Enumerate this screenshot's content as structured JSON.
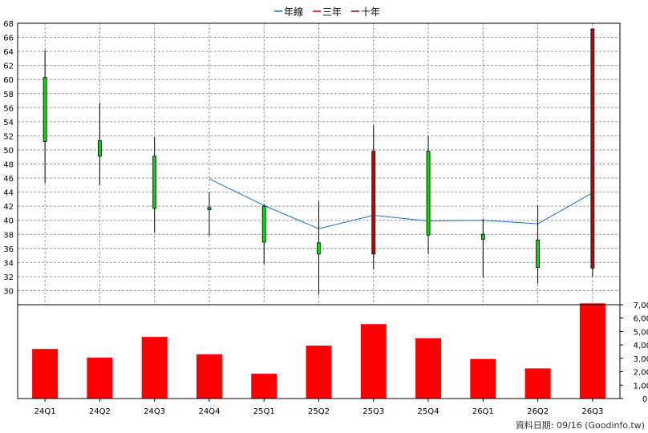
{
  "chart_data": {
    "type": "candlestick",
    "categories": [
      "24Q1",
      "24Q2",
      "24Q3",
      "24Q4",
      "25Q1",
      "25Q2",
      "25Q3",
      "25Q4",
      "26Q1",
      "26Q2",
      "26Q3"
    ],
    "legend": [
      {
        "name": "年線",
        "color": "#1f6fd1"
      },
      {
        "name": "三年",
        "color": "#e00000"
      },
      {
        "name": "十年",
        "color": "#800040"
      }
    ],
    "price_axis": {
      "ylim": [
        28,
        68
      ],
      "ticks": [
        30,
        32,
        34,
        36,
        38,
        40,
        42,
        44,
        46,
        48,
        50,
        52,
        54,
        56,
        58,
        60,
        62,
        64,
        66,
        68
      ]
    },
    "candles": [
      {
        "open": 60.3,
        "close": 51.2,
        "high": 64.2,
        "low": 45.3,
        "color": "#00dd00"
      },
      {
        "open": 51.3,
        "close": 49.1,
        "high": 56.7,
        "low": 45.0,
        "color": "#00dd00"
      },
      {
        "open": 49.1,
        "close": 41.7,
        "high": 51.8,
        "low": 38.3,
        "color": "#00dd00"
      },
      {
        "open": 41.8,
        "close": 41.5,
        "high": 44.0,
        "low": 37.8,
        "color": "#00dd00"
      },
      {
        "open": 42.0,
        "close": 36.9,
        "high": 42.3,
        "low": 33.8,
        "color": "#00dd00"
      },
      {
        "open": 36.8,
        "close": 35.2,
        "high": 42.7,
        "low": 29.4,
        "color": "#00dd00"
      },
      {
        "open": 35.2,
        "close": 49.8,
        "high": 53.5,
        "low": 33.1,
        "color": "#aa1111"
      },
      {
        "open": 49.8,
        "close": 37.9,
        "high": 52.0,
        "low": 35.2,
        "color": "#00dd00"
      },
      {
        "open": 38.0,
        "close": 37.3,
        "high": 40.2,
        "low": 31.9,
        "color": "#00dd00"
      },
      {
        "open": 37.2,
        "close": 33.3,
        "high": 42.1,
        "low": 31.0,
        "color": "#00dd00"
      },
      {
        "open": 33.2,
        "close": 67.2,
        "high": 67.2,
        "low": 32.0,
        "color": "#aa1111"
      }
    ],
    "ma_line": {
      "name": "年線",
      "values": [
        null,
        null,
        null,
        45.9,
        42.1,
        38.8,
        40.7,
        39.9,
        40.0,
        39.5,
        43.9
      ]
    },
    "volume_axis": {
      "ylim": [
        0,
        7000
      ],
      "ticks": [
        0,
        1000,
        2000,
        3000,
        4000,
        5000,
        6000,
        7000
      ],
      "tick_labels": [
        "0",
        "1,000",
        "2,000",
        "3,000",
        "4,000",
        "5,000",
        "6,000",
        "7,000"
      ]
    },
    "volume": [
      3700,
      3050,
      4600,
      3300,
      1850,
      3950,
      5550,
      4500,
      2950,
      2250,
      7100
    ],
    "volume_color": "#ff0000",
    "grid": true
  },
  "footer": {
    "source": "資料日期: 09/16  (Goodinfo.tw)"
  }
}
